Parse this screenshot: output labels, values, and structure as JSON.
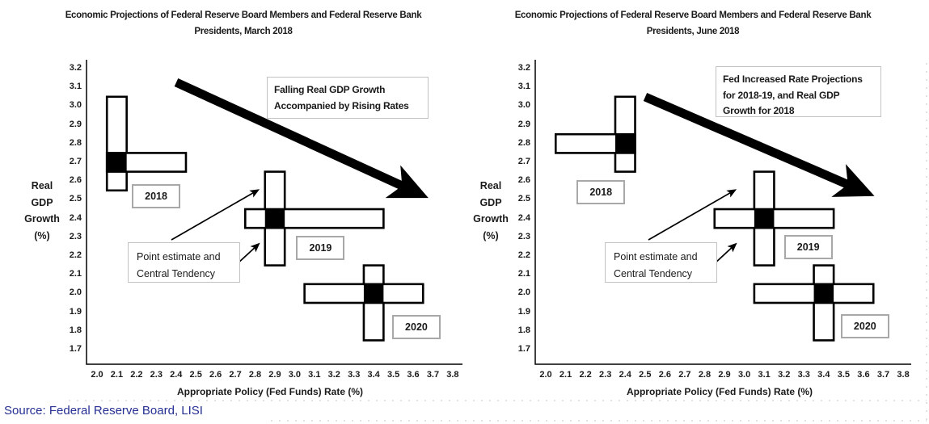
{
  "source": {
    "text": "Source: Federal Reserve Board, LISI"
  },
  "colors": {
    "marker_fill": "#000000",
    "bar_fill": "#ffffff",
    "bar_stroke": "#000000",
    "axis": "#000000",
    "arrow": "#000000",
    "year_box_border": "#a8a8a8",
    "note_box_border": "#c2c2c2",
    "source_text": "#252f92"
  },
  "chart_data": [
    {
      "type": "scatter",
      "title": "Economic Projections of Federal Reserve Board Members and Federal Reserve Bank Presidents, March 2018",
      "title_lines": [
        "Economic Projections of Federal Reserve Board Members and Federal Reserve Bank",
        "Presidents, March 2018"
      ],
      "xlabel": "Appropriate Policy (Fed Funds) Rate (%)",
      "ylabel": "Real GDP Growth (%)",
      "ylabel_lines": [
        "Real",
        "GDP",
        "Growth",
        "(%)"
      ],
      "xlim": [
        2.0,
        3.8
      ],
      "ylim": [
        1.7,
        3.2
      ],
      "grid": false,
      "xticks": [
        "2.0",
        "2.1",
        "2.2",
        "2.3",
        "2.4",
        "2.5",
        "2.6",
        "2.7",
        "2.8",
        "2.9",
        "3.0",
        "3.1",
        "3.2",
        "3.3",
        "3.4",
        "3.5",
        "3.6",
        "3.7",
        "3.8"
      ],
      "yticks": [
        "3.2",
        "3.1",
        "3.0",
        "2.9",
        "2.8",
        "2.7",
        "2.6",
        "2.5",
        "2.4",
        "2.3",
        "2.2",
        "2.1",
        "2.0",
        "1.9",
        "1.8",
        "1.7"
      ],
      "annotation_box": {
        "lines": [
          "Falling Real GDP Growth",
          "Accompanied by Rising Rates"
        ]
      },
      "pointer_box": {
        "lines": [
          "Point estimate and",
          "Central Tendency"
        ]
      },
      "series": [
        {
          "name": "2018",
          "point_estimate": {
            "rate": 2.1,
            "gdp": 2.7
          },
          "central_tendency": {
            "rate": [
              2.1,
              2.4
            ],
            "gdp": [
              2.6,
              3.0
            ]
          },
          "label_offset": [
            48.6,
            42
          ]
        },
        {
          "name": "2019",
          "point_estimate": {
            "rate": 2.9,
            "gdp": 2.4
          },
          "central_tendency": {
            "rate": [
              2.8,
              3.4
            ],
            "gdp": [
              2.2,
              2.6
            ]
          },
          "label_offset": [
            56.5,
            36.5
          ]
        },
        {
          "name": "2020",
          "point_estimate": {
            "rate": 3.4,
            "gdp": 2.0
          },
          "central_tendency": {
            "rate": [
              3.1,
              3.6
            ],
            "gdp": [
              1.8,
              2.1
            ]
          },
          "label_offset": [
            52.8,
            41.5
          ]
        }
      ]
    },
    {
      "type": "scatter",
      "title": "Economic Projections of Federal Reserve Board Members and Federal Reserve Bank Presidents, June 2018",
      "title_lines": [
        "Economic Projections of Federal Reserve Board Members and Federal Reserve Bank",
        "Presidents, June 2018"
      ],
      "xlabel": "Appropriate Policy (Fed Funds) Rate (%)",
      "ylabel": "Real GDP Growth (%)",
      "ylabel_lines": [
        "Real",
        "GDP",
        "Growth",
        "(%)"
      ],
      "xlim": [
        2.0,
        3.8
      ],
      "ylim": [
        1.7,
        3.2
      ],
      "grid": false,
      "xticks": [
        "2.0",
        "2.1",
        "2.2",
        "2.3",
        "2.4",
        "2.5",
        "2.6",
        "2.7",
        "2.8",
        "2.9",
        "3.0",
        "3.1",
        "3.2",
        "3.3",
        "3.4",
        "3.5",
        "3.6",
        "3.7",
        "3.8"
      ],
      "yticks": [
        "3.2",
        "3.1",
        "3.0",
        "2.9",
        "2.8",
        "2.7",
        "2.6",
        "2.5",
        "2.4",
        "2.3",
        "2.2",
        "2.1",
        "2.0",
        "1.9",
        "1.8",
        "1.7"
      ],
      "annotation_box": {
        "lines": [
          "Fed Increased Rate Projections",
          "for 2018-19, and Real GDP",
          "Growth for 2018"
        ]
      },
      "pointer_box": {
        "lines": [
          "Point estimate and",
          "Central Tendency"
        ]
      },
      "series": [
        {
          "name": "2018",
          "point_estimate": {
            "rate": 2.4,
            "gdp": 2.8
          },
          "central_tendency": {
            "rate": [
              2.1,
              2.4
            ],
            "gdp": [
              2.7,
              3.0
            ]
          },
          "label_offset": [
            -30,
            60.5
          ]
        },
        {
          "name": "2019",
          "point_estimate": {
            "rate": 3.1,
            "gdp": 2.4
          },
          "central_tendency": {
            "rate": [
              2.9,
              3.4
            ],
            "gdp": [
              2.2,
              2.6
            ]
          },
          "label_offset": [
            54.5,
            35.5
          ]
        },
        {
          "name": "2020",
          "point_estimate": {
            "rate": 3.4,
            "gdp": 2.0
          },
          "central_tendency": {
            "rate": [
              3.1,
              3.6
            ],
            "gdp": [
              1.8,
              2.1
            ]
          },
          "label_offset": [
            51,
            40.5
          ]
        }
      ]
    }
  ]
}
